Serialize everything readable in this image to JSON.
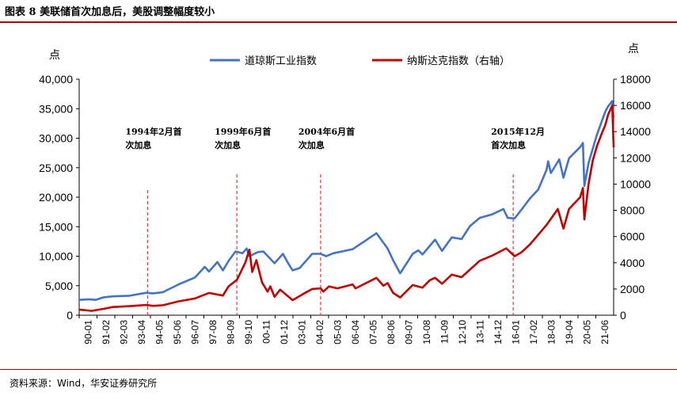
{
  "header": {
    "title": "图表 8 美联储首次加息后，美股调整幅度较小"
  },
  "footer": {
    "source": "资料来源：Wind，华安证券研究所"
  },
  "chart_data": {
    "type": "line",
    "left_unit": "点",
    "right_unit": "点",
    "left_axis": {
      "min": 0,
      "max": 40000,
      "ticks": [
        "0",
        "5,000",
        "10,000",
        "15,000",
        "20,000",
        "25,000",
        "30,000",
        "35,000",
        "40,000"
      ]
    },
    "right_axis": {
      "min": 0,
      "max": 18000,
      "ticks": [
        "0",
        "2000",
        "4000",
        "6000",
        "8000",
        "10000",
        "12000",
        "14000",
        "16000",
        "18000"
      ]
    },
    "x_range": [
      "1990-01",
      "2021-12"
    ],
    "x_tick_labels": [
      "90-01",
      "91-02",
      "92-03",
      "93-04",
      "94-05",
      "95-06",
      "96-07",
      "97-08",
      "98-09",
      "99-10",
      "00-11",
      "01-12",
      "03-01",
      "04-02",
      "05-03",
      "06-04",
      "07-05",
      "08-06",
      "09-07",
      "10-08",
      "11-09",
      "12-10",
      "13-11",
      "14-12",
      "16-01",
      "17-02",
      "18-03",
      "19-04",
      "20-05",
      "21-06"
    ],
    "legend_position": "top-center",
    "series": [
      {
        "name": "道琼斯工业指数",
        "axis": "left",
        "color": "#4472c4",
        "points": [
          [
            "1990-01",
            2600
          ],
          [
            "1990-08",
            2700
          ],
          [
            "1991-01",
            2600
          ],
          [
            "1991-06",
            3000
          ],
          [
            "1992-01",
            3200
          ],
          [
            "1993-01",
            3300
          ],
          [
            "1994-01",
            3800
          ],
          [
            "1994-06",
            3700
          ],
          [
            "1995-01",
            3900
          ],
          [
            "1995-06",
            4500
          ],
          [
            "1996-01",
            5300
          ],
          [
            "1996-12",
            6400
          ],
          [
            "1997-07",
            8200
          ],
          [
            "1997-10",
            7400
          ],
          [
            "1998-04",
            9000
          ],
          [
            "1998-08",
            7600
          ],
          [
            "1998-12",
            9200
          ],
          [
            "1999-05",
            10800
          ],
          [
            "1999-10",
            10500
          ],
          [
            "2000-01",
            11300
          ],
          [
            "2000-03",
            10000
          ],
          [
            "2000-09",
            10700
          ],
          [
            "2001-01",
            10800
          ],
          [
            "2001-09",
            8800
          ],
          [
            "2002-03",
            10400
          ],
          [
            "2002-07",
            8700
          ],
          [
            "2002-10",
            7600
          ],
          [
            "2003-03",
            8000
          ],
          [
            "2003-12",
            10400
          ],
          [
            "2004-06",
            10400
          ],
          [
            "2004-10",
            10000
          ],
          [
            "2005-03",
            10500
          ],
          [
            "2006-05",
            11200
          ],
          [
            "2007-02",
            12600
          ],
          [
            "2007-10",
            13900
          ],
          [
            "2008-03",
            12300
          ],
          [
            "2008-06",
            11300
          ],
          [
            "2008-10",
            9300
          ],
          [
            "2009-03",
            7100
          ],
          [
            "2009-12",
            10400
          ],
          [
            "2010-04",
            11000
          ],
          [
            "2010-07",
            10300
          ],
          [
            "2011-04",
            12800
          ],
          [
            "2011-09",
            10900
          ],
          [
            "2012-04",
            13200
          ],
          [
            "2012-11",
            12900
          ],
          [
            "2013-05",
            15100
          ],
          [
            "2013-12",
            16500
          ],
          [
            "2014-09",
            17100
          ],
          [
            "2015-05",
            18000
          ],
          [
            "2015-08",
            16500
          ],
          [
            "2016-01",
            16400
          ],
          [
            "2016-06",
            17900
          ],
          [
            "2016-12",
            19800
          ],
          [
            "2017-06",
            21300
          ],
          [
            "2017-12",
            24700
          ],
          [
            "2018-01",
            26100
          ],
          [
            "2018-03",
            24100
          ],
          [
            "2018-09",
            26400
          ],
          [
            "2018-12",
            23300
          ],
          [
            "2019-04",
            26600
          ],
          [
            "2019-12",
            28500
          ],
          [
            "2020-02",
            29200
          ],
          [
            "2020-03",
            21900
          ],
          [
            "2020-06",
            25800
          ],
          [
            "2020-12",
            30600
          ],
          [
            "2021-06",
            34500
          ],
          [
            "2021-08",
            35400
          ],
          [
            "2021-11",
            36300
          ],
          [
            "2021-12",
            33500
          ]
        ]
      },
      {
        "name": "纳斯达克指数（右轴）",
        "axis": "right",
        "color": "#c00000",
        "points": [
          [
            "1990-01",
            430
          ],
          [
            "1990-10",
            330
          ],
          [
            "1991-06",
            480
          ],
          [
            "1992-01",
            620
          ],
          [
            "1993-01",
            690
          ],
          [
            "1994-01",
            780
          ],
          [
            "1994-06",
            710
          ],
          [
            "1995-01",
            760
          ],
          [
            "1995-12",
            1050
          ],
          [
            "1996-12",
            1280
          ],
          [
            "1997-10",
            1700
          ],
          [
            "1998-08",
            1500
          ],
          [
            "1998-12",
            2200
          ],
          [
            "1999-06",
            2700
          ],
          [
            "1999-12",
            4000
          ],
          [
            "2000-03",
            5000
          ],
          [
            "2000-05",
            3300
          ],
          [
            "2000-08",
            4200
          ],
          [
            "2000-12",
            2500
          ],
          [
            "2001-04",
            1800
          ],
          [
            "2001-06",
            2200
          ],
          [
            "2001-09",
            1400
          ],
          [
            "2002-01",
            1950
          ],
          [
            "2002-10",
            1150
          ],
          [
            "2003-06",
            1650
          ],
          [
            "2003-12",
            2000
          ],
          [
            "2004-06",
            2050
          ],
          [
            "2004-08",
            1800
          ],
          [
            "2004-12",
            2200
          ],
          [
            "2005-06",
            2050
          ],
          [
            "2006-05",
            2350
          ],
          [
            "2006-07",
            2050
          ],
          [
            "2007-10",
            2850
          ],
          [
            "2008-03",
            2250
          ],
          [
            "2008-06",
            2450
          ],
          [
            "2008-10",
            1700
          ],
          [
            "2009-03",
            1350
          ],
          [
            "2009-12",
            2300
          ],
          [
            "2010-07",
            2100
          ],
          [
            "2010-12",
            2650
          ],
          [
            "2011-04",
            2850
          ],
          [
            "2011-09",
            2400
          ],
          [
            "2012-04",
            3100
          ],
          [
            "2012-11",
            2900
          ],
          [
            "2013-12",
            4150
          ],
          [
            "2014-09",
            4550
          ],
          [
            "2015-07",
            5100
          ],
          [
            "2016-01",
            4500
          ],
          [
            "2016-06",
            4800
          ],
          [
            "2016-12",
            5400
          ],
          [
            "2017-12",
            6900
          ],
          [
            "2018-08",
            8100
          ],
          [
            "2018-12",
            6600
          ],
          [
            "2019-04",
            8100
          ],
          [
            "2019-12",
            9000
          ],
          [
            "2020-02",
            9700
          ],
          [
            "2020-03",
            7300
          ],
          [
            "2020-06",
            10000
          ],
          [
            "2020-09",
            11800
          ],
          [
            "2020-12",
            12900
          ],
          [
            "2021-04",
            14000
          ],
          [
            "2021-06",
            14500
          ],
          [
            "2021-08",
            15300
          ],
          [
            "2021-11",
            16000
          ],
          [
            "2021-12",
            12800
          ]
        ]
      }
    ],
    "annotations": [
      {
        "date": "1994-02",
        "lines": [
          "1994年2月首",
          "次加息"
        ]
      },
      {
        "date": "1999-06",
        "lines": [
          "1999年6月首",
          "次加息"
        ]
      },
      {
        "date": "2004-06",
        "lines": [
          "2004年6月首",
          "次加息"
        ]
      },
      {
        "date": "2015-12",
        "lines": [
          "2015年12月",
          "首次加息"
        ]
      }
    ]
  }
}
